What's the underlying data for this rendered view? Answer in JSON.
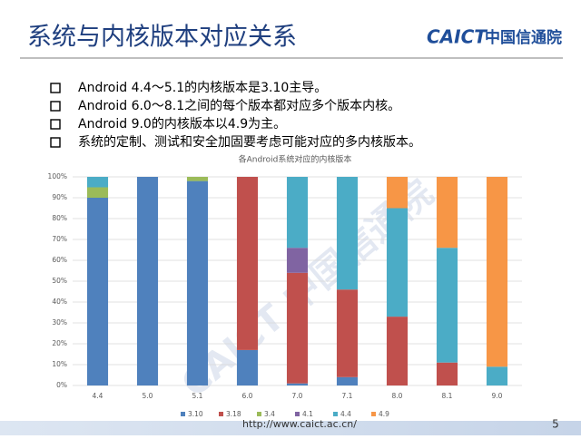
{
  "slide": {
    "title": "系统与内核版本对应关系",
    "logo_abbr": "CAICT",
    "logo_name": "中国信通院",
    "bullets": [
      "Android 4.4～5.1的内核版本是3.10主导。",
      "Android 6.0～8.1之间的每个版本都对应多个版本内核。",
      "Android 9.0的内核版本以4.9为主。",
      "系统的定制、测试和安全加固要考虑可能对应的多内核版本。"
    ],
    "watermark": "CAICT 中国信通院",
    "footer_url": "http://www.caict.ac.cn/",
    "page_number": "5"
  },
  "chart_data": {
    "type": "stacked_bar",
    "title": "各Android系统对应的内核版本",
    "categories": [
      "4.4",
      "5.0",
      "5.1",
      "6.0",
      "7.0",
      "7.1",
      "8.0",
      "8.1",
      "9.0"
    ],
    "series": [
      {
        "name": "3.10",
        "color": "#4f81bd",
        "values": [
          90,
          100,
          98,
          17,
          1,
          4,
          0,
          0,
          0
        ]
      },
      {
        "name": "3.18",
        "color": "#c0504d",
        "values": [
          0,
          0,
          0,
          83,
          53,
          42,
          33,
          11,
          0
        ]
      },
      {
        "name": "3.4",
        "color": "#9bbb59",
        "values": [
          5,
          0,
          2,
          0,
          0,
          0,
          0,
          0,
          0
        ]
      },
      {
        "name": "4.1",
        "color": "#8064a2",
        "values": [
          0,
          0,
          0,
          0,
          12,
          0,
          0,
          0,
          0
        ]
      },
      {
        "name": "4.4",
        "color": "#4bacc6",
        "values": [
          5,
          0,
          0,
          0,
          34,
          54,
          52,
          55,
          9
        ]
      },
      {
        "name": "4.9",
        "color": "#f79646",
        "values": [
          0,
          0,
          0,
          0,
          0,
          0,
          15,
          34,
          91
        ]
      }
    ],
    "ylim": [
      0,
      100
    ],
    "yticks": [
      {
        "value": 0,
        "label": "0%"
      },
      {
        "value": 10,
        "label": "10%"
      },
      {
        "value": 20,
        "label": "20%"
      },
      {
        "value": 30,
        "label": "30%"
      },
      {
        "value": 40,
        "label": "40%"
      },
      {
        "value": 50,
        "label": "50%"
      },
      {
        "value": 60,
        "label": "60%"
      },
      {
        "value": 70,
        "label": "70%"
      },
      {
        "value": 80,
        "label": "80%"
      },
      {
        "value": 90,
        "label": "90%"
      },
      {
        "value": 100,
        "label": "100%"
      }
    ],
    "grid": true
  }
}
